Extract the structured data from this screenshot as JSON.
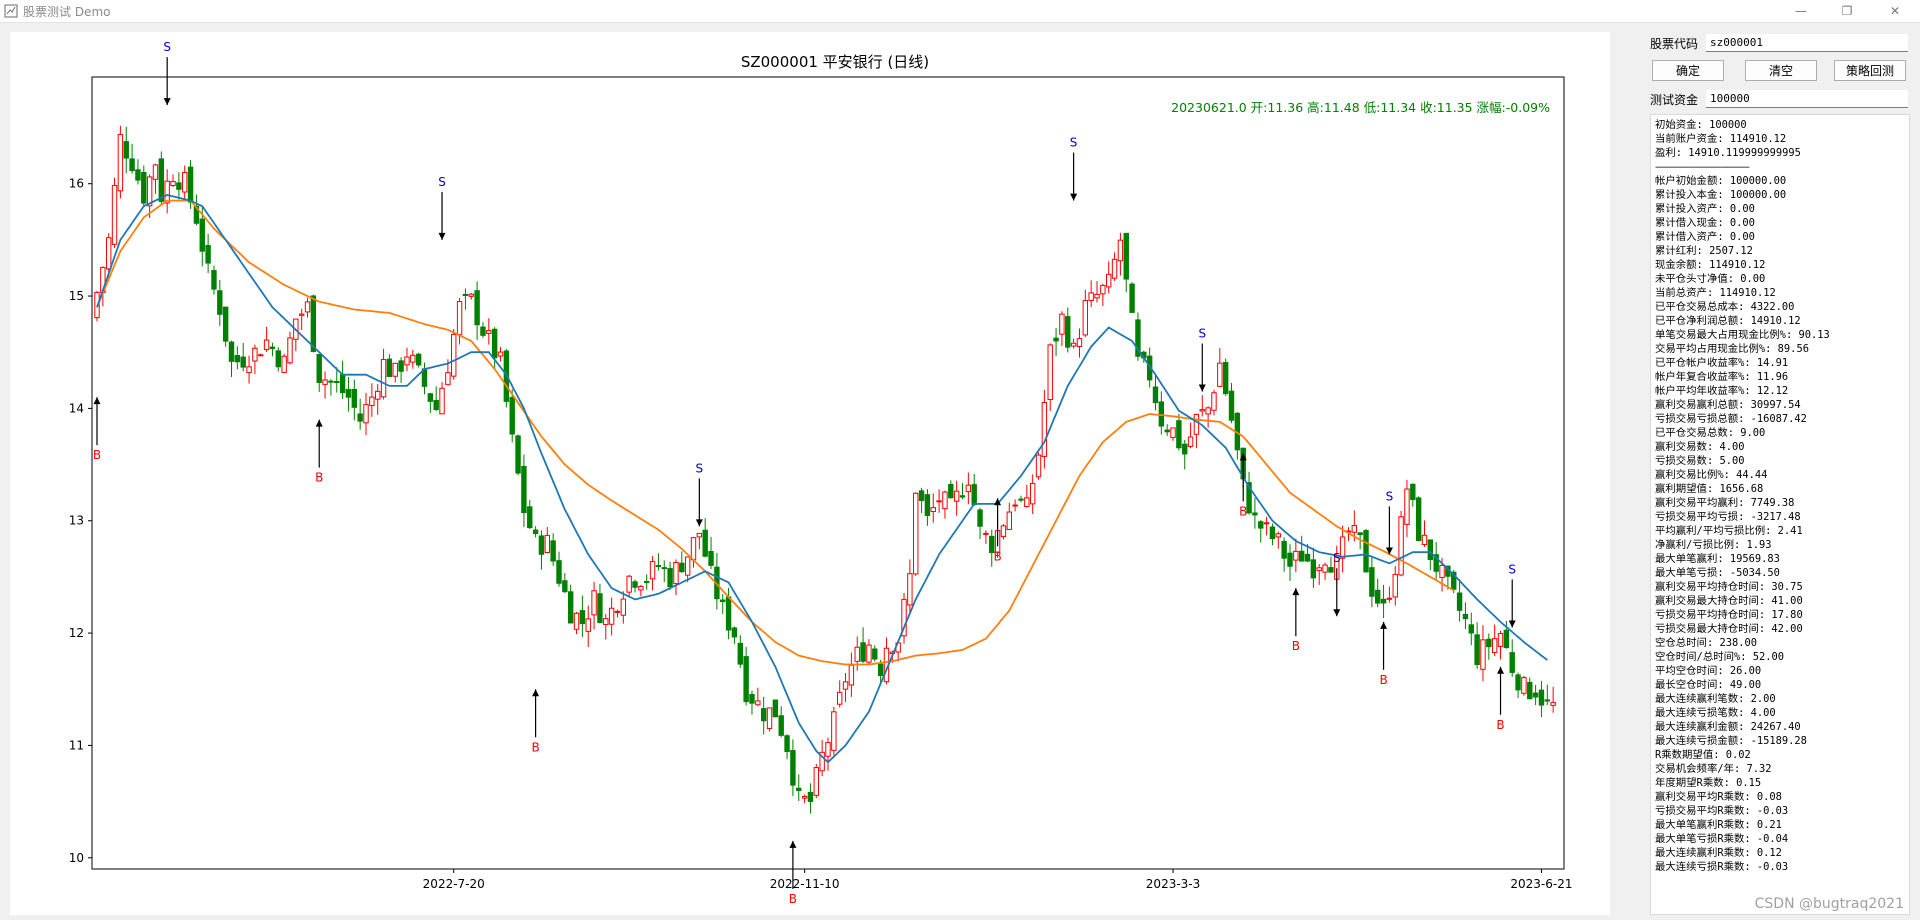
{
  "window": {
    "title": "股票测试 Demo",
    "controls": {
      "minimize": "—",
      "maximize": "❐",
      "close": "✕"
    }
  },
  "watermark": "CSDN @bugtraq2021",
  "form": {
    "stock_code_label": "股票代码",
    "stock_code_value": "sz000001",
    "confirm_label": "确定",
    "clear_label": "清空",
    "backtest_label": "策略回测",
    "capital_label": "测试资金",
    "capital_value": "100000"
  },
  "stats": {
    "summary": [
      "初始资金: 100000",
      "当前账户资金: 114910.12",
      "盈利: 14910.119999999995"
    ],
    "separator": "——————————",
    "details": [
      "帐户初始金额: 100000.00",
      "累计投入本金: 100000.00",
      "累计投入资产: 0.00",
      "累计借入现金: 0.00",
      "累计借入资产: 0.00",
      "累计红利: 2507.12",
      "现金余额: 114910.12",
      "未平仓头寸净值: 0.00",
      "当前总资产: 114910.12",
      "已平仓交易总成本: 4322.00",
      "已平仓净利润总额: 14910.12",
      "单笔交易最大占用现金比例%: 90.13",
      "交易平均占用现金比例%: 89.56",
      "已平仓帐户收益率%: 14.91",
      "帐户年复合收益率%: 11.96",
      "帐户平均年收益率%: 12.12",
      "赢利交易赢利总额: 30997.54",
      "亏损交易亏损总额: -16087.42",
      "已平仓交易总数: 9.00",
      "赢利交易数: 4.00",
      "亏损交易数: 5.00",
      "赢利交易比例%: 44.44",
      "赢利期望值: 1656.68",
      "赢利交易平均赢利: 7749.38",
      "亏损交易平均亏损: -3217.48",
      "平均赢利/平均亏损比例: 2.41",
      "净赢利/亏损比例: 1.93",
      "最大单笔赢利: 19569.83",
      "最大单笔亏损: -5034.50",
      "赢利交易平均持仓时间: 30.75",
      "赢利交易最大持仓时间: 41.00",
      "亏损交易平均持仓时间: 17.80",
      "亏损交易最大持仓时间: 42.00",
      "空仓总时间: 238.00",
      "空仓时间/总时间%: 52.00",
      "平均空仓时间: 26.00",
      "最长空仓时间: 49.00",
      "最大连续赢利笔数: 2.00",
      "最大连续亏损笔数: 4.00",
      "最大连续赢利金额: 24267.40",
      "最大连续亏损金额: -15189.28",
      "R乘数期望值: 0.02",
      "交易机会频率/年: 7.32",
      "年度期望R乘数: 0.15",
      "赢利交易平均R乘数: 0.08",
      "亏损交易平均R乘数: -0.03",
      "最大单笔赢利R乘数: 0.21",
      "最大单笔亏损R乘数: -0.04",
      "最大连续赢利R乘数: 0.12",
      "最大连续亏损R乘数: -0.03"
    ]
  },
  "chart_data": {
    "type": "candlestick",
    "title": "SZ000001 平安银行 (日线)",
    "info": "20230621.0 开:11.36 高:11.48 低:11.34 收:11.35 涨幅:-0.09%",
    "x_range": [
      0,
      250
    ],
    "ylim": [
      9.9,
      16.95
    ],
    "yticks": [
      10,
      11,
      12,
      13,
      14,
      15,
      16
    ],
    "xticks": [
      {
        "i": 61,
        "label": "2022-7-20"
      },
      {
        "i": 121,
        "label": "2022-11-10"
      },
      {
        "i": 184,
        "label": "2023-3-3"
      },
      {
        "i": 247,
        "label": "2023-6-21"
      }
    ],
    "colors": {
      "up": "#ff0000",
      "down": "#008000",
      "ma_short": "#1f77b4",
      "ma_long": "#ff7f0e",
      "buy": "#ff0000",
      "sell": "#0000cd",
      "info": "#008000"
    },
    "price_anchors": [
      [
        0,
        14.8
      ],
      [
        3,
        15.5
      ],
      [
        5,
        16.4
      ],
      [
        7,
        16.2
      ],
      [
        9,
        15.9
      ],
      [
        11,
        16.2
      ],
      [
        12,
        15.9
      ],
      [
        14,
        16.1
      ],
      [
        16,
        16.0
      ],
      [
        18,
        15.7
      ],
      [
        20,
        15.2
      ],
      [
        22,
        14.9
      ],
      [
        24,
        14.4
      ],
      [
        28,
        14.5
      ],
      [
        30,
        14.6
      ],
      [
        33,
        14.4
      ],
      [
        35,
        14.8
      ],
      [
        37,
        14.9
      ],
      [
        39,
        14.3
      ],
      [
        42,
        14.2
      ],
      [
        44,
        14.1
      ],
      [
        46,
        13.9
      ],
      [
        48,
        14.1
      ],
      [
        50,
        14.4
      ],
      [
        52,
        14.3
      ],
      [
        54,
        14.5
      ],
      [
        57,
        14.2
      ],
      [
        59,
        14.0
      ],
      [
        61,
        14.4
      ],
      [
        63,
        14.9
      ],
      [
        65,
        14.95
      ],
      [
        67,
        14.7
      ],
      [
        70,
        14.4
      ],
      [
        72,
        13.7
      ],
      [
        74,
        13.1
      ],
      [
        76,
        12.8
      ],
      [
        78,
        12.8
      ],
      [
        80,
        12.5
      ],
      [
        82,
        12.2
      ],
      [
        84,
        12.1
      ],
      [
        86,
        12.3
      ],
      [
        88,
        12.1
      ],
      [
        90,
        12.3
      ],
      [
        92,
        12.5
      ],
      [
        95,
        12.5
      ],
      [
        97,
        12.6
      ],
      [
        99,
        12.5
      ],
      [
        102,
        12.7
      ],
      [
        104,
        12.9
      ],
      [
        106,
        12.5
      ],
      [
        108,
        12.2
      ],
      [
        110,
        12.0
      ],
      [
        112,
        11.5
      ],
      [
        115,
        11.3
      ],
      [
        117,
        11.3
      ],
      [
        119,
        11.0
      ],
      [
        121,
        10.5
      ],
      [
        123,
        10.5
      ],
      [
        125,
        10.9
      ],
      [
        127,
        11.2
      ],
      [
        129,
        11.6
      ],
      [
        131,
        11.8
      ],
      [
        133,
        11.9
      ],
      [
        135,
        11.7
      ],
      [
        136,
        11.9
      ],
      [
        138,
        11.95
      ],
      [
        140,
        12.5
      ],
      [
        141,
        13.3
      ],
      [
        143,
        13.0
      ],
      [
        145,
        13.2
      ],
      [
        147,
        13.1
      ],
      [
        150,
        13.4
      ],
      [
        152,
        12.9
      ],
      [
        154,
        12.8
      ],
      [
        156,
        13.0
      ],
      [
        158,
        13.2
      ],
      [
        160,
        13.1
      ],
      [
        162,
        13.6
      ],
      [
        164,
        14.5
      ],
      [
        166,
        14.8
      ],
      [
        168,
        14.5
      ],
      [
        170,
        14.9
      ],
      [
        172,
        15.0
      ],
      [
        174,
        15.1
      ],
      [
        176,
        15.5
      ],
      [
        177,
        15.1
      ],
      [
        179,
        14.4
      ],
      [
        181,
        14.3
      ],
      [
        183,
        13.9
      ],
      [
        185,
        13.8
      ],
      [
        187,
        13.6
      ],
      [
        189,
        13.9
      ],
      [
        191,
        14.0
      ],
      [
        193,
        14.4
      ],
      [
        195,
        13.9
      ],
      [
        197,
        13.3
      ],
      [
        199,
        13.0
      ],
      [
        201,
        12.9
      ],
      [
        203,
        12.8
      ],
      [
        205,
        12.6
      ],
      [
        207,
        12.7
      ],
      [
        209,
        12.6
      ],
      [
        211,
        12.7
      ],
      [
        213,
        12.6
      ],
      [
        215,
        12.9
      ],
      [
        217,
        12.8
      ],
      [
        219,
        12.4
      ],
      [
        221,
        12.2
      ],
      [
        223,
        12.6
      ],
      [
        225,
        13.3
      ],
      [
        227,
        12.9
      ],
      [
        229,
        12.7
      ],
      [
        231,
        12.5
      ],
      [
        233,
        12.3
      ],
      [
        235,
        12.1
      ],
      [
        237,
        11.8
      ],
      [
        239,
        11.9
      ],
      [
        241,
        12.0
      ],
      [
        243,
        11.7
      ],
      [
        245,
        11.5
      ],
      [
        247,
        11.5
      ],
      [
        249,
        11.35
      ]
    ],
    "ma_short_anchors": [
      [
        0,
        14.9
      ],
      [
        4,
        15.5
      ],
      [
        8,
        15.8
      ],
      [
        12,
        15.9
      ],
      [
        16,
        15.85
      ],
      [
        18,
        15.8
      ],
      [
        22,
        15.5
      ],
      [
        26,
        15.2
      ],
      [
        30,
        14.9
      ],
      [
        34,
        14.7
      ],
      [
        38,
        14.5
      ],
      [
        42,
        14.3
      ],
      [
        46,
        14.3
      ],
      [
        50,
        14.2
      ],
      [
        53,
        14.2
      ],
      [
        56,
        14.35
      ],
      [
        60,
        14.4
      ],
      [
        64,
        14.5
      ],
      [
        67,
        14.5
      ],
      [
        70,
        14.3
      ],
      [
        73,
        14.0
      ],
      [
        76,
        13.6
      ],
      [
        80,
        13.1
      ],
      [
        84,
        12.7
      ],
      [
        88,
        12.4
      ],
      [
        92,
        12.3
      ],
      [
        96,
        12.35
      ],
      [
        100,
        12.45
      ],
      [
        104,
        12.55
      ],
      [
        108,
        12.45
      ],
      [
        112,
        12.1
      ],
      [
        116,
        11.7
      ],
      [
        120,
        11.2
      ],
      [
        123,
        10.95
      ],
      [
        125,
        10.85
      ],
      [
        128,
        11.0
      ],
      [
        132,
        11.3
      ],
      [
        136,
        11.8
      ],
      [
        140,
        12.3
      ],
      [
        144,
        12.7
      ],
      [
        148,
        13.0
      ],
      [
        150,
        13.15
      ],
      [
        154,
        13.15
      ],
      [
        158,
        13.4
      ],
      [
        162,
        13.7
      ],
      [
        166,
        14.2
      ],
      [
        170,
        14.55
      ],
      [
        173,
        14.72
      ],
      [
        177,
        14.6
      ],
      [
        181,
        14.3
      ],
      [
        185,
        13.98
      ],
      [
        189,
        13.85
      ],
      [
        193,
        13.65
      ],
      [
        197,
        13.3
      ],
      [
        201,
        13.0
      ],
      [
        205,
        12.82
      ],
      [
        209,
        12.72
      ],
      [
        213,
        12.68
      ],
      [
        217,
        12.7
      ],
      [
        221,
        12.62
      ],
      [
        225,
        12.72
      ],
      [
        228,
        12.72
      ],
      [
        232,
        12.52
      ],
      [
        236,
        12.3
      ],
      [
        240,
        12.1
      ],
      [
        244,
        11.92
      ],
      [
        248,
        11.76
      ]
    ],
    "ma_long_anchors": [
      [
        0,
        14.9
      ],
      [
        4,
        15.4
      ],
      [
        8,
        15.7
      ],
      [
        12,
        15.85
      ],
      [
        16,
        15.85
      ],
      [
        20,
        15.6
      ],
      [
        26,
        15.3
      ],
      [
        32,
        15.1
      ],
      [
        38,
        14.95
      ],
      [
        44,
        14.88
      ],
      [
        50,
        14.85
      ],
      [
        56,
        14.75
      ],
      [
        60,
        14.7
      ],
      [
        64,
        14.6
      ],
      [
        68,
        14.35
      ],
      [
        72,
        14.05
      ],
      [
        76,
        13.75
      ],
      [
        80,
        13.5
      ],
      [
        84,
        13.32
      ],
      [
        88,
        13.18
      ],
      [
        92,
        13.05
      ],
      [
        96,
        12.92
      ],
      [
        100,
        12.75
      ],
      [
        104,
        12.55
      ],
      [
        108,
        12.32
      ],
      [
        112,
        12.1
      ],
      [
        116,
        11.92
      ],
      [
        120,
        11.8
      ],
      [
        124,
        11.75
      ],
      [
        128,
        11.72
      ],
      [
        132,
        11.72
      ],
      [
        136,
        11.75
      ],
      [
        140,
        11.8
      ],
      [
        144,
        11.82
      ],
      [
        148,
        11.85
      ],
      [
        152,
        11.95
      ],
      [
        156,
        12.2
      ],
      [
        160,
        12.6
      ],
      [
        164,
        13.0
      ],
      [
        168,
        13.4
      ],
      [
        172,
        13.7
      ],
      [
        176,
        13.88
      ],
      [
        180,
        13.95
      ],
      [
        184,
        13.93
      ],
      [
        188,
        13.9
      ],
      [
        192,
        13.88
      ],
      [
        196,
        13.75
      ],
      [
        200,
        13.5
      ],
      [
        204,
        13.25
      ],
      [
        208,
        13.1
      ],
      [
        212,
        12.95
      ],
      [
        216,
        12.83
      ],
      [
        220,
        12.73
      ],
      [
        224,
        12.62
      ],
      [
        228,
        12.5
      ],
      [
        232,
        12.38
      ]
    ],
    "sell_signals": [
      [
        12,
        16.7
      ],
      [
        59,
        15.5
      ],
      [
        103,
        12.95
      ],
      [
        167,
        15.85
      ],
      [
        189,
        14.15
      ],
      [
        212,
        12.15
      ],
      [
        221,
        12.7
      ],
      [
        242,
        12.05
      ]
    ],
    "buy_signals": [
      [
        0,
        14.1
      ],
      [
        38,
        13.9
      ],
      [
        75,
        11.5
      ],
      [
        119,
        10.15
      ],
      [
        154,
        13.2
      ],
      [
        196,
        13.6
      ],
      [
        205,
        12.4
      ],
      [
        220,
        12.1
      ],
      [
        240,
        11.7
      ]
    ],
    "sell_label": "S",
    "buy_label": "B"
  }
}
